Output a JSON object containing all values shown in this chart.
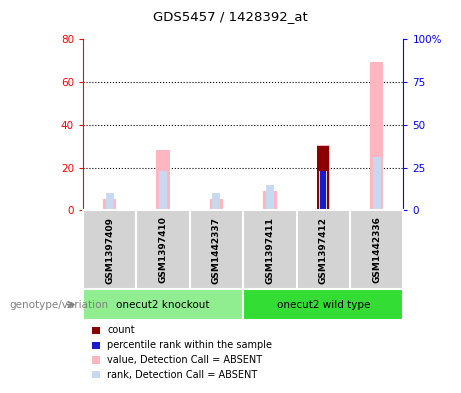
{
  "title": "GDS5457 / 1428392_at",
  "samples": [
    "GSM1397409",
    "GSM1397410",
    "GSM1442337",
    "GSM1397411",
    "GSM1397412",
    "GSM1442336"
  ],
  "value_absent": [
    5.5,
    28.0,
    5.5,
    9.0,
    30.5,
    69.5
  ],
  "rank_absent": [
    10.0,
    23.0,
    10.0,
    14.5,
    23.0,
    31.0
  ],
  "count": [
    0,
    0,
    0,
    0,
    30.0,
    0
  ],
  "percentile_rank": [
    0,
    0,
    0,
    0,
    23.0,
    0
  ],
  "left_ylim": [
    0,
    80
  ],
  "right_ylim": [
    0,
    100
  ],
  "left_yticks": [
    0,
    20,
    40,
    60,
    80
  ],
  "right_yticks": [
    0,
    25,
    50,
    75,
    100
  ],
  "right_yticklabels": [
    "0",
    "25",
    "50",
    "75",
    "100%"
  ],
  "color_value_absent": "#FFB6C1",
  "color_rank_absent": "#C8D8F0",
  "color_count": "#8B0000",
  "color_percentile": "#1A1ACD",
  "bg_color": "#D3D3D3",
  "group1_color": "#90EE90",
  "group2_color": "#33DD33",
  "group1_name": "onecut2 knockout",
  "group2_name": "onecut2 wild type",
  "label_count": "count",
  "label_percentile": "percentile rank within the sample",
  "label_value_absent": "value, Detection Call = ABSENT",
  "label_rank_absent": "rank, Detection Call = ABSENT",
  "genotype_label": "genotype/variation"
}
